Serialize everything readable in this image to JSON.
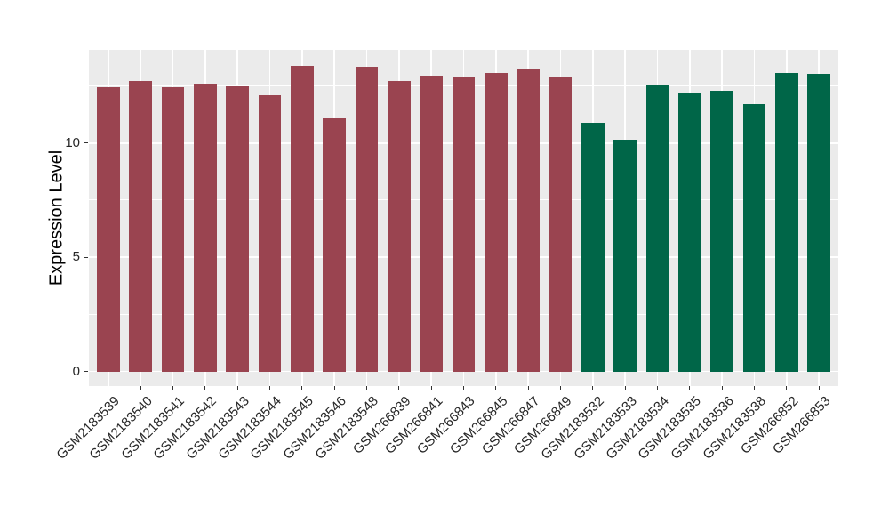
{
  "chart_data": {
    "type": "bar",
    "title": "",
    "xlabel": "",
    "ylabel": "Expression Level",
    "legend": "none",
    "grid": "on",
    "panel_bg": "#EBEBEB",
    "grid_color": "#FFFFFF",
    "axis_text_color": "#262626",
    "tick_mark_color": "#333333",
    "group_colors": {
      "case_maroon": "#9A4450",
      "control_green": "#006648"
    },
    "yticks": [
      0,
      5,
      10
    ],
    "minor_gridlines": [
      2.5,
      7.5,
      12.5
    ],
    "ylim": [
      -0.62,
      14.08
    ],
    "bar_width_fraction": 0.7,
    "categories": [
      "GSM2183539",
      "GSM2183540",
      "GSM2183541",
      "GSM2183542",
      "GSM2183543",
      "GSM2183544",
      "GSM2183545",
      "GSM2183546",
      "GSM2183548",
      "GSM266839",
      "GSM266841",
      "GSM266843",
      "GSM266845",
      "GSM266847",
      "GSM266849",
      "GSM2183532",
      "GSM2183533",
      "GSM2183534",
      "GSM2183535",
      "GSM2183536",
      "GSM2183538",
      "GSM266852",
      "GSM266853"
    ],
    "values": [
      12.45,
      12.71,
      12.43,
      12.6,
      12.49,
      12.08,
      13.38,
      11.09,
      13.34,
      12.73,
      12.95,
      12.91,
      13.05,
      13.21,
      12.91,
      10.87,
      10.16,
      12.56,
      12.22,
      12.3,
      11.71,
      13.08,
      13.01
    ],
    "bar_colors": [
      "#9A4450",
      "#9A4450",
      "#9A4450",
      "#9A4450",
      "#9A4450",
      "#9A4450",
      "#9A4450",
      "#9A4450",
      "#9A4450",
      "#9A4450",
      "#9A4450",
      "#9A4450",
      "#9A4450",
      "#9A4450",
      "#9A4450",
      "#006648",
      "#006648",
      "#006648",
      "#006648",
      "#006648",
      "#006648",
      "#006648",
      "#006648"
    ]
  }
}
